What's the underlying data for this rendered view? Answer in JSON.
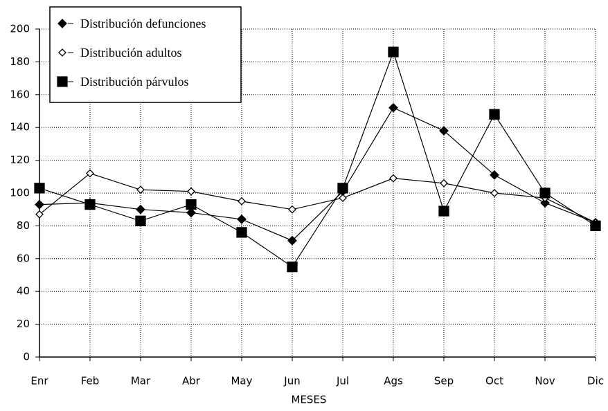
{
  "chart_data": {
    "type": "line",
    "x_label": "MESES",
    "categories": [
      "Enr",
      "Feb",
      "Mar",
      "Abr",
      "May",
      "Jun",
      "Jul",
      "Ags",
      "Sep",
      "Oct",
      "Nov",
      "Dic"
    ],
    "series": [
      {
        "name": "Distribución defunciones",
        "color": "#000000",
        "marker": "diamond",
        "values": [
          93,
          94,
          90,
          88,
          84,
          71,
          101,
          152,
          138,
          111,
          94,
          82
        ]
      },
      {
        "name": "Distribución adultos",
        "color": "#000000",
        "marker": "diamond-open",
        "values": [
          87,
          112,
          102,
          101,
          95,
          90,
          97,
          109,
          106,
          100,
          97,
          82
        ]
      },
      {
        "name": "Distribución párvulos",
        "color": "#000000",
        "marker": "square",
        "values": [
          103,
          93,
          83,
          93,
          76,
          55,
          103,
          186,
          89,
          148,
          100,
          80
        ]
      }
    ],
    "ylim": [
      0,
      200
    ],
    "yticks": [
      0,
      20,
      40,
      60,
      80,
      100,
      120,
      140,
      160,
      180,
      200
    ],
    "grid": true,
    "legend": "upper left"
  }
}
